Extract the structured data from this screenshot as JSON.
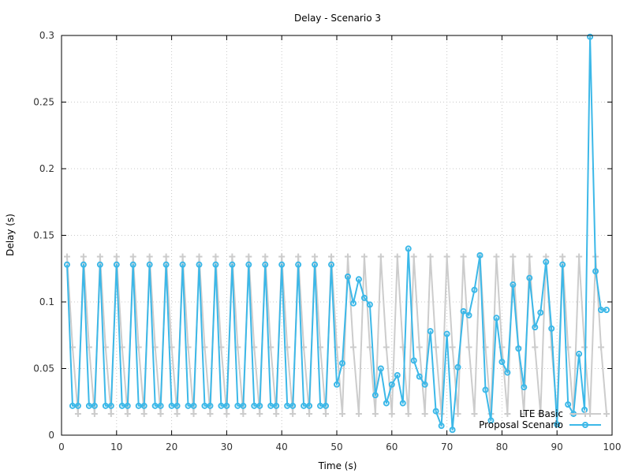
{
  "chart_data": {
    "type": "line",
    "title": "Delay - Scenario 3",
    "xlabel": "Time (s)",
    "ylabel": "Delay (s)",
    "xlim": [
      0,
      100
    ],
    "ylim": [
      0,
      0.3
    ],
    "xticks": [
      "0",
      "10",
      "20",
      "30",
      "40",
      "50",
      "60",
      "70",
      "80",
      "90",
      "100"
    ],
    "yticks": [
      "0",
      "0.05",
      "0.1",
      "0.15",
      "0.2",
      "0.25",
      "0.3"
    ],
    "grid": true,
    "legend_position": "bottom-right",
    "series": [
      {
        "name": "LTE Basic",
        "color": "#cccccc",
        "marker": "plus",
        "x": [
          1,
          2,
          3,
          4,
          5,
          6,
          7,
          8,
          9,
          10,
          11,
          12,
          13,
          14,
          15,
          16,
          17,
          18,
          19,
          20,
          21,
          22,
          23,
          24,
          25,
          26,
          27,
          28,
          29,
          30,
          31,
          32,
          33,
          34,
          35,
          36,
          37,
          38,
          39,
          40,
          41,
          42,
          43,
          44,
          45,
          46,
          47,
          48,
          49,
          50,
          51,
          52,
          53,
          54,
          55,
          56,
          57,
          58,
          59,
          60,
          61,
          62,
          63,
          64,
          65,
          66,
          67,
          68,
          69,
          70,
          71,
          72,
          73,
          74,
          75,
          76,
          77,
          78,
          79,
          80,
          81,
          82,
          83,
          84,
          85,
          86,
          87,
          88,
          89,
          90,
          91,
          92,
          93,
          94,
          95,
          96,
          97,
          98,
          99
        ],
        "values": [
          0.134,
          0.066,
          0.016,
          0.134,
          0.066,
          0.016,
          0.134,
          0.066,
          0.016,
          0.134,
          0.066,
          0.016,
          0.134,
          0.066,
          0.016,
          0.134,
          0.066,
          0.016,
          0.134,
          0.066,
          0.016,
          0.134,
          0.066,
          0.016,
          0.134,
          0.066,
          0.016,
          0.134,
          0.066,
          0.016,
          0.134,
          0.066,
          0.016,
          0.134,
          0.066,
          0.016,
          0.134,
          0.066,
          0.016,
          0.134,
          0.066,
          0.016,
          0.134,
          0.066,
          0.016,
          0.134,
          0.066,
          0.016,
          0.134,
          0.066,
          0.016,
          0.134,
          0.066,
          0.016,
          0.134,
          0.066,
          0.016,
          0.134,
          0.066,
          0.016,
          0.134,
          0.066,
          0.016,
          0.134,
          0.066,
          0.016,
          0.134,
          0.066,
          0.016,
          0.134,
          0.066,
          0.016,
          0.134,
          0.066,
          0.016,
          0.134,
          0.066,
          0.016,
          0.134,
          0.066,
          0.016,
          0.134,
          0.066,
          0.016,
          0.134,
          0.066,
          0.016,
          0.134,
          0.066,
          0.016,
          0.134,
          0.066,
          0.016,
          0.134,
          0.066,
          0.016,
          0.134,
          0.066,
          0.016
        ]
      },
      {
        "name": "Proposal Scenario",
        "color": "#3cb8e8",
        "marker": "circle",
        "x": [
          1,
          2,
          3,
          4,
          5,
          6,
          7,
          8,
          9,
          10,
          11,
          12,
          13,
          14,
          15,
          16,
          17,
          18,
          19,
          20,
          21,
          22,
          23,
          24,
          25,
          26,
          27,
          28,
          29,
          30,
          31,
          32,
          33,
          34,
          35,
          36,
          37,
          38,
          39,
          40,
          41,
          42,
          43,
          44,
          45,
          46,
          47,
          48,
          49,
          50,
          51,
          52,
          53,
          54,
          55,
          56,
          57,
          58,
          59,
          60,
          61,
          62,
          63,
          64,
          65,
          66,
          67,
          68,
          69,
          70,
          71,
          72,
          73,
          74,
          75,
          76,
          77,
          78,
          79,
          80,
          81,
          82,
          83,
          84,
          85,
          86,
          87,
          88,
          89,
          90,
          91,
          92,
          93,
          94,
          95,
          96,
          97,
          98,
          99
        ],
        "values": [
          0.128,
          0.022,
          0.022,
          0.128,
          0.022,
          0.022,
          0.128,
          0.022,
          0.022,
          0.128,
          0.022,
          0.022,
          0.128,
          0.022,
          0.022,
          0.128,
          0.022,
          0.022,
          0.128,
          0.022,
          0.022,
          0.128,
          0.022,
          0.022,
          0.128,
          0.022,
          0.022,
          0.128,
          0.022,
          0.022,
          0.128,
          0.022,
          0.022,
          0.128,
          0.022,
          0.022,
          0.128,
          0.022,
          0.022,
          0.128,
          0.022,
          0.022,
          0.128,
          0.022,
          0.022,
          0.128,
          0.022,
          0.022,
          0.128,
          0.038,
          0.054,
          0.119,
          0.099,
          0.117,
          0.103,
          0.098,
          0.03,
          0.05,
          0.024,
          0.038,
          0.045,
          0.024,
          0.14,
          0.056,
          0.044,
          0.038,
          0.078,
          0.018,
          0.007,
          0.076,
          0.004,
          0.051,
          0.093,
          0.09,
          0.109,
          0.135,
          0.034,
          0.011,
          0.088,
          0.055,
          0.047,
          0.113,
          0.065,
          0.036,
          0.118,
          0.081,
          0.092,
          0.13,
          0.08,
          0.008,
          0.128,
          0.023,
          0.016,
          0.061,
          0.019,
          0.299,
          0.123,
          0.094,
          0.094
        ]
      }
    ]
  }
}
